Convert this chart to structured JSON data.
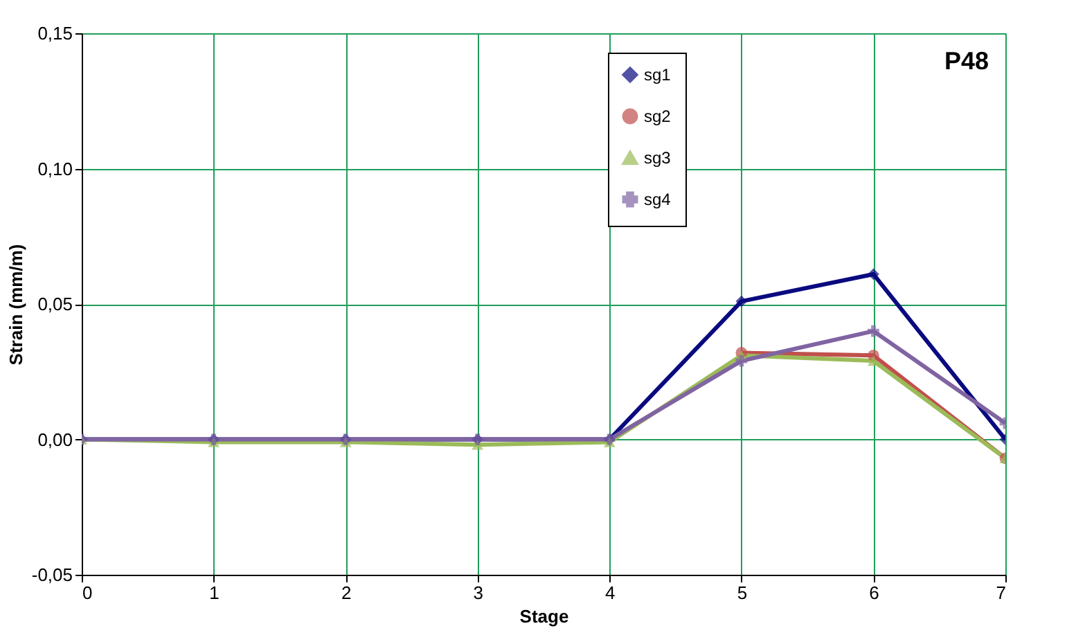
{
  "chart_data": {
    "type": "line",
    "title": "P48",
    "xlabel": "Stage",
    "ylabel": "Strain (mm/m)",
    "x": [
      0,
      1,
      2,
      3,
      4,
      5,
      6,
      7
    ],
    "series": [
      {
        "name": "sg1",
        "color": "#0a0a80",
        "marker": "diamond",
        "values": [
          0,
          0,
          0,
          0,
          0,
          0.051,
          0.061,
          0.0
        ]
      },
      {
        "name": "sg2",
        "color": "#c0504d",
        "marker": "circle",
        "values": [
          null,
          null,
          null,
          null,
          null,
          0.032,
          0.031,
          -0.007
        ]
      },
      {
        "name": "sg3",
        "color": "#9bbb59",
        "marker": "triangle",
        "values": [
          0,
          -0.001,
          -0.001,
          -0.002,
          -0.001,
          0.031,
          0.029,
          -0.007
        ]
      },
      {
        "name": "sg4",
        "color": "#8064a2",
        "marker": "cross",
        "values": [
          0,
          0,
          0,
          0,
          0,
          0.029,
          0.04,
          0.006
        ]
      }
    ],
    "xlim": [
      0,
      7
    ],
    "xticks": [
      0,
      1,
      2,
      3,
      4,
      5,
      6,
      7
    ],
    "ylim": [
      -0.05,
      0.15
    ],
    "yticks": [
      {
        "value": -0.05,
        "label": "-0,05"
      },
      {
        "value": 0,
        "label": "0,00"
      },
      {
        "value": 0.05,
        "label": "0,05"
      },
      {
        "value": 0.1,
        "label": "0,10"
      },
      {
        "value": 0.15,
        "label": "0,15"
      }
    ],
    "grid": true,
    "legend": "top right"
  }
}
